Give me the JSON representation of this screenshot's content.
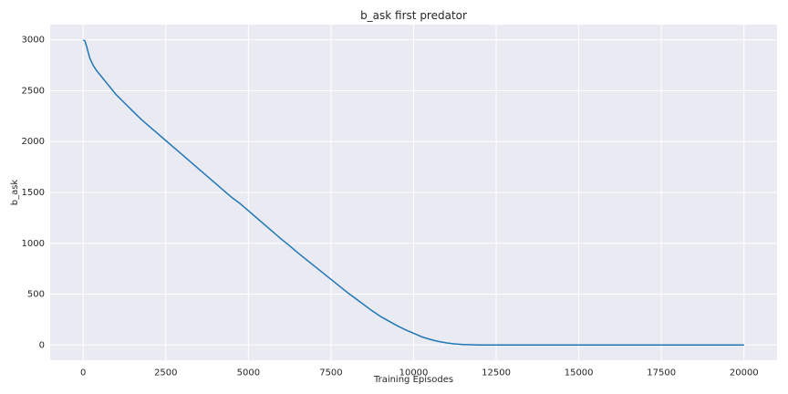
{
  "chart_data": {
    "type": "line",
    "title": "b_ask first predator",
    "xlabel": "Training Episodes",
    "ylabel": "b_ask",
    "xlim": [
      -1000,
      21000
    ],
    "ylim": [
      -150,
      3150
    ],
    "xticks": [
      0,
      2500,
      5000,
      7500,
      10000,
      12500,
      15000,
      17500,
      20000
    ],
    "yticks": [
      0,
      500,
      1000,
      1500,
      2000,
      2500,
      3000
    ],
    "grid": true,
    "legend": "none",
    "colors": {
      "background": "#eaeaf2",
      "grid": "#ffffff",
      "line": "#1f77b4"
    },
    "series": [
      {
        "x": [
          0,
          50,
          100,
          150,
          200,
          300,
          400,
          500,
          600,
          700,
          800,
          1000,
          1250,
          1500,
          1750,
          2000,
          2250,
          2500,
          2750,
          3000,
          3250,
          3500,
          3750,
          4000,
          4250,
          4500,
          4750,
          5000,
          5250,
          5500,
          5750,
          6000,
          6250,
          6500,
          6750,
          7000,
          7250,
          7500,
          7750,
          8000,
          8250,
          8500,
          8750,
          9000,
          9250,
          9500,
          9750,
          10000,
          10250,
          10500,
          10750,
          11000,
          11250,
          11500,
          11750,
          12000,
          12250,
          12500,
          12750,
          13000,
          13250,
          13500,
          13750,
          14000,
          14250,
          14500,
          15000,
          16000,
          17000,
          18000,
          19000,
          20000
        ],
        "y": [
          3000,
          2990,
          2940,
          2880,
          2820,
          2750,
          2700,
          2660,
          2620,
          2580,
          2540,
          2460,
          2380,
          2300,
          2220,
          2150,
          2080,
          2010,
          1940,
          1870,
          1800,
          1730,
          1660,
          1590,
          1520,
          1450,
          1390,
          1320,
          1250,
          1180,
          1110,
          1040,
          975,
          905,
          840,
          775,
          710,
          645,
          580,
          515,
          455,
          395,
          335,
          280,
          235,
          190,
          150,
          115,
          80,
          55,
          35,
          20,
          10,
          5,
          2,
          0,
          0,
          0,
          0,
          0,
          0,
          0,
          0,
          0,
          0,
          0,
          0,
          0,
          0,
          0,
          0,
          0
        ]
      }
    ]
  }
}
